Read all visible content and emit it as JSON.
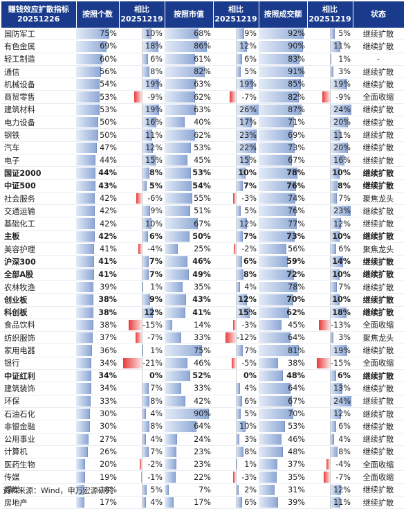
{
  "header": {
    "col0_line1": "赚钱效应扩散指标",
    "col0_line2": "20251226",
    "col1": "按照个数",
    "col2_line1": "相比",
    "col2_line2": "20251219",
    "col3": "按照市值",
    "col4_line1": "相比",
    "col4_line2": "20251219",
    "col5": "按照成交额",
    "col6_line1": "相比",
    "col6_line2": "20251219",
    "col7": "状态"
  },
  "source": "资料来源：Wind，申万宏源研究",
  "colors": {
    "header_bg": "#1a3a8c",
    "pos_bar": "#8fa9d6",
    "neg_bar": "#e83a3a"
  },
  "chart_data": {
    "type": "table",
    "columns": [
      "赚钱效应扩散指标",
      "按照个数",
      "相比20251219",
      "按照市值",
      "相比20251219",
      "按照成交额",
      "相比20251219",
      "状态"
    ],
    "rows": [
      {
        "name": "国防军工",
        "count": "75%",
        "count_chg": "10%",
        "cap": "68%",
        "cap_chg": "9%",
        "amt": "92%",
        "amt_chg": "5%",
        "state": "继续扩散",
        "bold": false
      },
      {
        "name": "有色金属",
        "count": "69%",
        "count_chg": "18%",
        "cap": "86%",
        "cap_chg": "12%",
        "amt": "90%",
        "amt_chg": "11%",
        "state": "继续扩散",
        "bold": false
      },
      {
        "name": "轻工制造",
        "count": "60%",
        "count_chg": "6%",
        "cap": "61%",
        "cap_chg": "6%",
        "amt": "83%",
        "amt_chg": "1%",
        "state": "-",
        "bold": false
      },
      {
        "name": "通信",
        "count": "56%",
        "count_chg": "8%",
        "cap": "82%",
        "cap_chg": "5%",
        "amt": "91%",
        "amt_chg": "3%",
        "state": "继续扩散",
        "bold": false
      },
      {
        "name": "机械设备",
        "count": "54%",
        "count_chg": "19%",
        "cap": "63%",
        "cap_chg": "19%",
        "amt": "85%",
        "amt_chg": "19%",
        "state": "继续扩散",
        "bold": false
      },
      {
        "name": "商贸零售",
        "count": "53%",
        "count_chg": "-9%",
        "cap": "62%",
        "cap_chg": "-7%",
        "amt": "82%",
        "amt_chg": "-9%",
        "state": "全面收缩",
        "bold": false
      },
      {
        "name": "建筑材料",
        "count": "53%",
        "count_chg": "19%",
        "cap": "63%",
        "cap_chg": "26%",
        "amt": "87%",
        "amt_chg": "24%",
        "state": "继续扩散",
        "bold": false
      },
      {
        "name": "电力设备",
        "count": "50%",
        "count_chg": "16%",
        "cap": "40%",
        "cap_chg": "17%",
        "amt": "71%",
        "amt_chg": "20%",
        "state": "继续扩散",
        "bold": false
      },
      {
        "name": "钢铁",
        "count": "50%",
        "count_chg": "11%",
        "cap": "62%",
        "cap_chg": "23%",
        "amt": "69%",
        "amt_chg": "11%",
        "state": "继续扩散",
        "bold": false
      },
      {
        "name": "汽车",
        "count": "47%",
        "count_chg": "12%",
        "cap": "53%",
        "cap_chg": "22%",
        "amt": "73%",
        "amt_chg": "20%",
        "state": "继续扩散",
        "bold": false
      },
      {
        "name": "电子",
        "count": "44%",
        "count_chg": "15%",
        "cap": "45%",
        "cap_chg": "15%",
        "amt": "67%",
        "amt_chg": "16%",
        "state": "继续扩散",
        "bold": false
      },
      {
        "name": "国证2000",
        "count": "44%",
        "count_chg": "8%",
        "cap": "53%",
        "cap_chg": "10%",
        "amt": "78%",
        "amt_chg": "10%",
        "state": "继续扩散",
        "bold": true
      },
      {
        "name": "中证500",
        "count": "43%",
        "count_chg": "5%",
        "cap": "54%",
        "cap_chg": "7%",
        "amt": "76%",
        "amt_chg": "8%",
        "state": "继续扩散",
        "bold": true
      },
      {
        "name": "社会服务",
        "count": "42%",
        "count_chg": "-6%",
        "cap": "55%",
        "cap_chg": "-3%",
        "amt": "74%",
        "amt_chg": "7%",
        "state": "聚焦龙头",
        "bold": false
      },
      {
        "name": "交通运输",
        "count": "42%",
        "count_chg": "9%",
        "cap": "51%",
        "cap_chg": "5%",
        "amt": "76%",
        "amt_chg": "23%",
        "state": "继续扩散",
        "bold": false
      },
      {
        "name": "基础化工",
        "count": "42%",
        "count_chg": "10%",
        "cap": "67%",
        "cap_chg": "12%",
        "amt": "77%",
        "amt_chg": "12%",
        "state": "继续扩散",
        "bold": false
      },
      {
        "name": "主板",
        "count": "42%",
        "count_chg": "6%",
        "cap": "50%",
        "cap_chg": "7%",
        "amt": "73%",
        "amt_chg": "10%",
        "state": "继续扩散",
        "bold": true
      },
      {
        "name": "美容护理",
        "count": "41%",
        "count_chg": "-4%",
        "cap": "25%",
        "cap_chg": "-2%",
        "amt": "56%",
        "amt_chg": "6%",
        "state": "聚焦龙头",
        "bold": false
      },
      {
        "name": "沪深300",
        "count": "41%",
        "count_chg": "7%",
        "cap": "46%",
        "cap_chg": "6%",
        "amt": "59%",
        "amt_chg": "14%",
        "state": "继续扩散",
        "bold": true
      },
      {
        "name": "全部A股",
        "count": "41%",
        "count_chg": "7%",
        "cap": "49%",
        "cap_chg": "8%",
        "amt": "72%",
        "amt_chg": "10%",
        "state": "继续扩散",
        "bold": true
      },
      {
        "name": "农林牧渔",
        "count": "39%",
        "count_chg": "1%",
        "cap": "35%",
        "cap_chg": "4%",
        "amt": "78%",
        "amt_chg": "7%",
        "state": "继续扩散",
        "bold": false
      },
      {
        "name": "创业板",
        "count": "38%",
        "count_chg": "9%",
        "cap": "43%",
        "cap_chg": "12%",
        "amt": "70%",
        "amt_chg": "10%",
        "state": "继续扩散",
        "bold": true
      },
      {
        "name": "科创板",
        "count": "38%",
        "count_chg": "12%",
        "cap": "41%",
        "cap_chg": "15%",
        "amt": "62%",
        "amt_chg": "18%",
        "state": "继续扩散",
        "bold": true
      },
      {
        "name": "食品饮料",
        "count": "38%",
        "count_chg": "-15%",
        "cap": "14%",
        "cap_chg": "-3%",
        "amt": "45%",
        "amt_chg": "-13%",
        "state": "全面收缩",
        "bold": false
      },
      {
        "name": "纺织服饰",
        "count": "37%",
        "count_chg": "-7%",
        "cap": "33%",
        "cap_chg": "-12%",
        "amt": "64%",
        "amt_chg": "3%",
        "state": "聚焦龙头",
        "bold": false
      },
      {
        "name": "家用电器",
        "count": "36%",
        "count_chg": "1%",
        "cap": "75%",
        "cap_chg": "7%",
        "amt": "81%",
        "amt_chg": "19%",
        "state": "继续扩散",
        "bold": false
      },
      {
        "name": "银行",
        "count": "34%",
        "count_chg": "-21%",
        "cap": "46%",
        "cap_chg": "-5%",
        "amt": "38%",
        "amt_chg": "-15%",
        "state": "全面收缩",
        "bold": false
      },
      {
        "name": "中证红利",
        "count": "34%",
        "count_chg": "0%",
        "cap": "52%",
        "cap_chg": "0%",
        "amt": "48%",
        "amt_chg": "6%",
        "state": "继续扩散",
        "bold": true
      },
      {
        "name": "建筑装饰",
        "count": "34%",
        "count_chg": "7%",
        "cap": "33%",
        "cap_chg": "4%",
        "amt": "64%",
        "amt_chg": "13%",
        "state": "继续扩散",
        "bold": false
      },
      {
        "name": "环保",
        "count": "33%",
        "count_chg": "8%",
        "cap": "42%",
        "cap_chg": "6%",
        "amt": "67%",
        "amt_chg": "24%",
        "state": "继续扩散",
        "bold": false
      },
      {
        "name": "石油石化",
        "count": "30%",
        "count_chg": "4%",
        "cap": "90%",
        "cap_chg": "5%",
        "amt": "70%",
        "amt_chg": "12%",
        "state": "继续扩散",
        "bold": false
      },
      {
        "name": "非银金融",
        "count": "30%",
        "count_chg": "8%",
        "cap": "64%",
        "cap_chg": "10%",
        "amt": "53%",
        "amt_chg": "6%",
        "state": "继续扩散",
        "bold": false
      },
      {
        "name": "公用事业",
        "count": "27%",
        "count_chg": "4%",
        "cap": "24%",
        "cap_chg": "3%",
        "amt": "46%",
        "amt_chg": "4%",
        "state": "继续扩散",
        "bold": false
      },
      {
        "name": "计算机",
        "count": "26%",
        "count_chg": "7%",
        "cap": "23%",
        "cap_chg": "8%",
        "amt": "48%",
        "amt_chg": "8%",
        "state": "继续扩散",
        "bold": false
      },
      {
        "name": "医药生物",
        "count": "20%",
        "count_chg": "-2%",
        "cap": "23%",
        "cap_chg": "1%",
        "amt": "37%",
        "amt_chg": "-4%",
        "state": "全面收缩",
        "bold": false
      },
      {
        "name": "传媒",
        "count": "19%",
        "count_chg": "-1%",
        "cap": "22%",
        "cap_chg": "-3%",
        "amt": "35%",
        "amt_chg": "-7%",
        "state": "全面收缩",
        "bold": false
      },
      {
        "name": "煤炭",
        "count": "18%",
        "count_chg": "5%",
        "cap": "7%",
        "cap_chg": "2%",
        "amt": "31%",
        "amt_chg": "12%",
        "state": "继续扩散",
        "bold": false
      },
      {
        "name": "房地产",
        "count": "17%",
        "count_chg": "4%",
        "cap": "17%",
        "cap_chg": "6%",
        "amt": "39%",
        "amt_chg": "11%",
        "state": "继续扩散",
        "bold": false
      }
    ]
  }
}
